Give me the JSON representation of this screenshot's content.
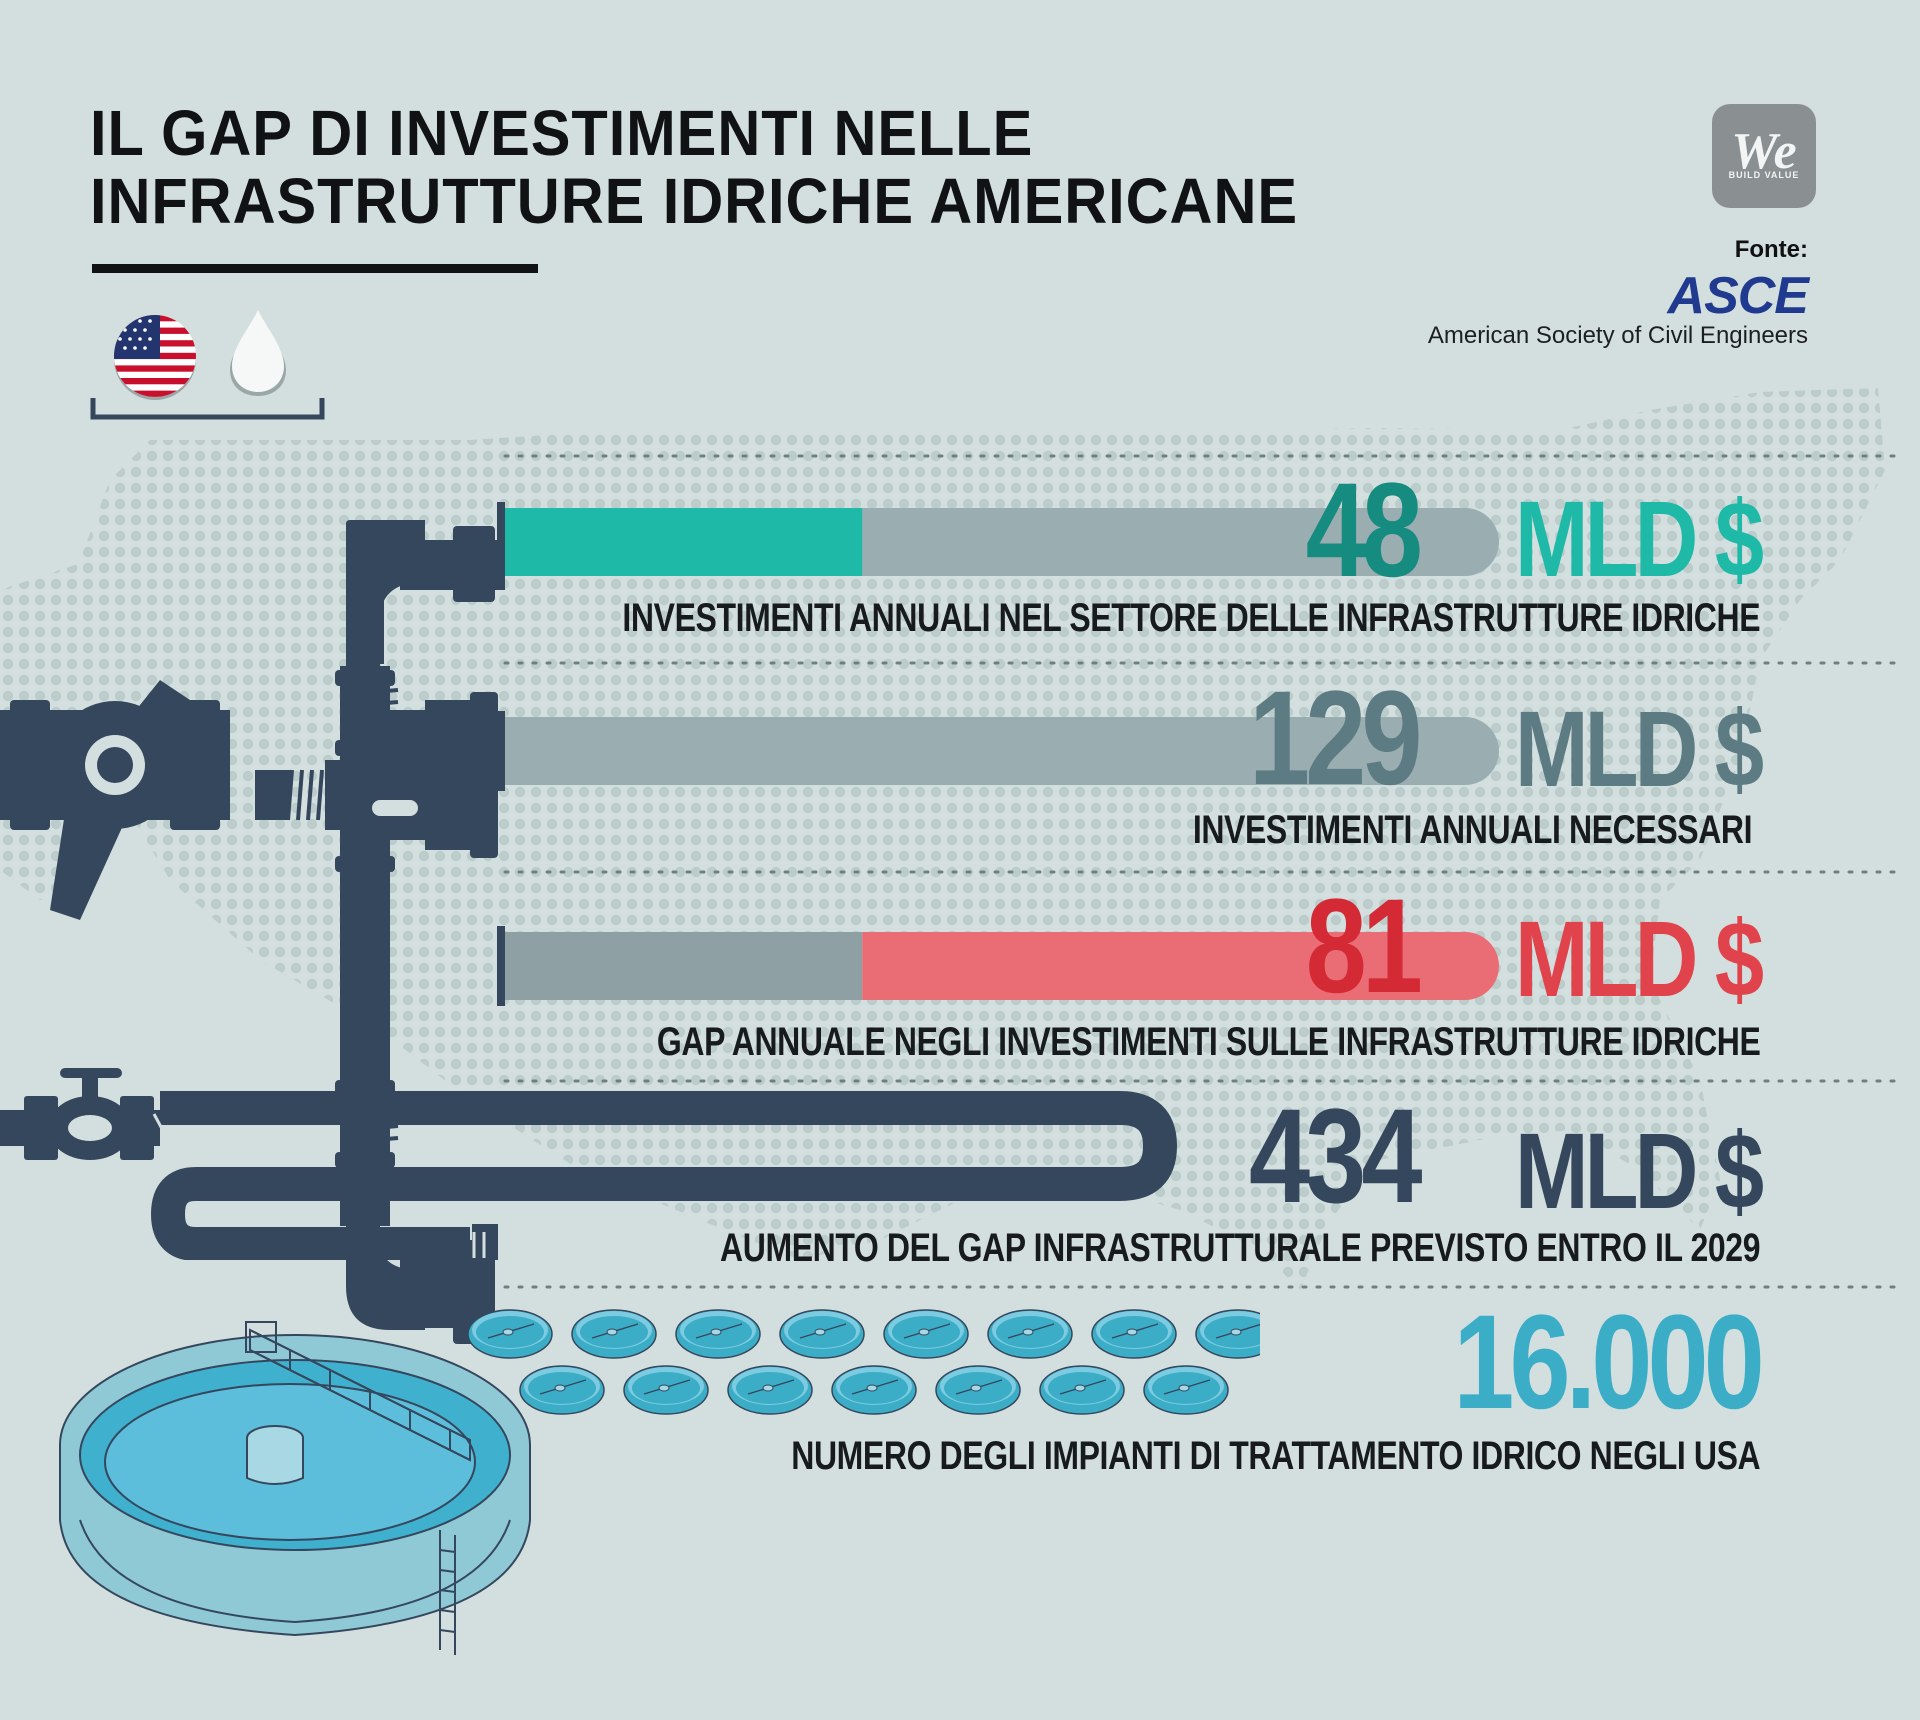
{
  "header": {
    "title_line1": "IL GAP DI INVESTIMENTI NELLE",
    "title_line2": "INFRASTRUTTURE IDRICHE AMERICANE"
  },
  "brand": {
    "logo_text": "We",
    "logo_tagline": "BUILD VALUE"
  },
  "source": {
    "label": "Fonte:",
    "org_logo": "ASCE",
    "org_name": "American Society of Civil Engineers"
  },
  "icons": [
    "usa-flag-icon",
    "water-drop-icon",
    "pipe-valve-icon",
    "treatment-plant-icon"
  ],
  "colors": {
    "background": "#d3dfde",
    "teal": "#1fb9a8",
    "teal_dark": "#168c80",
    "gray_bar": "#9aaeb2",
    "slate": "#5c7b82",
    "red": "#ea6d75",
    "red_dark": "#d42a35",
    "navy": "#35475d",
    "blue": "#3cadc7"
  },
  "chart_data": {
    "type": "bar",
    "categories": [
      "INVESTIMENTI ANNUALI NEL SETTORE DELLE INFRASTRUTTURE IDRICHE",
      "INVESTIMENTI ANNUALI NECESSARI",
      "GAP ANNUALE NEGLI INVESTIMENTI SULLE INFRASTRUTTURE IDRICHE"
    ],
    "values": [
      48,
      129,
      81
    ],
    "max": 129,
    "unit": "MLD $",
    "stats": [
      {
        "value": "48",
        "unit": "MLD $",
        "label": "INVESTIMENTI ANNUALI NEL SETTORE DELLE INFRASTRUTTURE IDRICHE"
      },
      {
        "value": "129",
        "unit": "MLD $",
        "label": "INVESTIMENTI ANNUALI NECESSARI"
      },
      {
        "value": "81",
        "unit": "MLD $",
        "label": "GAP ANNUALE NEGLI INVESTIMENTI SULLE INFRASTRUTTURE IDRICHE"
      },
      {
        "value": "434",
        "unit": "MLD $",
        "label": "AUMENTO DEL GAP INFRASTRUTTURALE PREVISTO ENTRO IL 2029"
      },
      {
        "value": "16.000",
        "unit": "",
        "label": "NUMERO DEGLI IMPIANTI DI TRATTAMENTO IDRICO NEGLI USA"
      }
    ]
  }
}
